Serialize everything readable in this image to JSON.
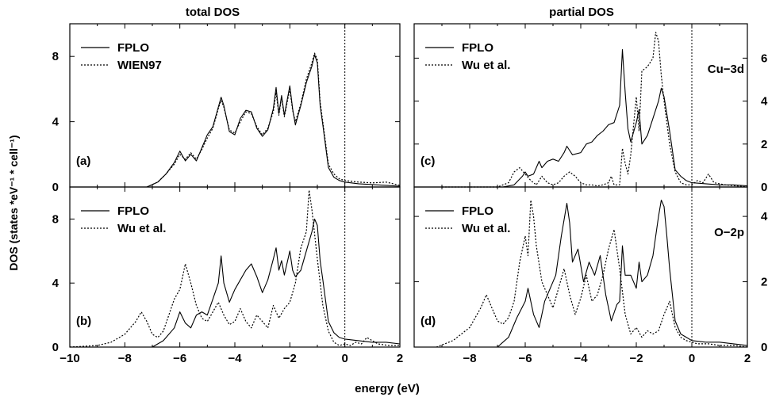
{
  "figure": {
    "column_titles": [
      "total DOS",
      "partial DOS"
    ],
    "xlabel": "energy (eV)",
    "ylabel": "DOS (states *eV⁻¹ * cell⁻¹)"
  },
  "chart_data": [
    {
      "type": "line",
      "panel": "(a)",
      "title": "total DOS",
      "xlim": [
        -10,
        2
      ],
      "ylim": [
        0,
        10
      ],
      "xticks": [],
      "yticks": [
        "0",
        "4",
        "8"
      ],
      "annotation": "",
      "legend": {
        "placement": "top-left",
        "entries": [
          "FPLO",
          "WIEN97"
        ]
      },
      "series": [
        {
          "name": "FPLO",
          "style": "solid",
          "x": [
            -7.2,
            -6.8,
            -6.5,
            -6.2,
            -6.0,
            -5.8,
            -5.6,
            -5.4,
            -5.2,
            -5.0,
            -4.8,
            -4.6,
            -4.5,
            -4.4,
            -4.2,
            -4.0,
            -3.8,
            -3.6,
            -3.4,
            -3.2,
            -3.0,
            -2.8,
            -2.6,
            -2.5,
            -2.4,
            -2.3,
            -2.2,
            -2.0,
            -1.9,
            -1.8,
            -1.6,
            -1.4,
            -1.2,
            -1.1,
            -1.0,
            -0.9,
            -0.8,
            -0.6,
            -0.4,
            -0.2,
            0.0,
            0.5,
            1.0,
            1.5,
            2.0
          ],
          "y": [
            0,
            0.3,
            0.8,
            1.5,
            2.2,
            1.6,
            2.0,
            1.6,
            2.4,
            3.2,
            3.7,
            4.9,
            5.5,
            5.0,
            3.4,
            3.2,
            4.2,
            4.7,
            4.6,
            3.6,
            3.1,
            3.5,
            4.8,
            6.1,
            4.5,
            5.6,
            4.4,
            6.2,
            4.8,
            3.8,
            5.0,
            6.4,
            7.4,
            8.1,
            7.6,
            5.0,
            3.8,
            1.2,
            0.6,
            0.4,
            0.3,
            0.2,
            0.15,
            0.1,
            0.05
          ]
        },
        {
          "name": "WIEN97",
          "style": "dotted",
          "x": [
            -7.2,
            -6.8,
            -6.5,
            -6.2,
            -6.0,
            -5.8,
            -5.6,
            -5.4,
            -5.2,
            -5.0,
            -4.8,
            -4.6,
            -4.5,
            -4.4,
            -4.2,
            -4.0,
            -3.8,
            -3.6,
            -3.4,
            -3.2,
            -3.0,
            -2.8,
            -2.6,
            -2.5,
            -2.4,
            -2.3,
            -2.2,
            -2.0,
            -1.9,
            -1.8,
            -1.6,
            -1.4,
            -1.2,
            -1.1,
            -1.0,
            -0.9,
            -0.8,
            -0.6,
            -0.4,
            -0.2,
            0.0,
            0.5,
            1.0,
            1.5,
            2.0
          ],
          "y": [
            0,
            0.3,
            0.8,
            1.4,
            2.0,
            1.7,
            2.1,
            1.7,
            2.3,
            3.0,
            3.6,
            4.8,
            5.3,
            4.9,
            3.5,
            3.3,
            4.0,
            4.6,
            4.5,
            3.7,
            3.2,
            3.6,
            4.6,
            5.8,
            4.4,
            5.5,
            4.3,
            6.0,
            4.7,
            4.0,
            5.1,
            6.6,
            7.6,
            8.2,
            7.8,
            5.2,
            4.0,
            1.4,
            0.8,
            0.5,
            0.4,
            0.3,
            0.25,
            0.3,
            0.1
          ]
        }
      ]
    },
    {
      "type": "line",
      "panel": "(b)",
      "title": "",
      "xlim": [
        -10,
        2
      ],
      "ylim": [
        0,
        10
      ],
      "xticks": [
        "−10",
        "−8",
        "−6",
        "−4",
        "−2",
        "0",
        "2"
      ],
      "yticks": [
        "0",
        "4",
        "8"
      ],
      "annotation": "",
      "legend": {
        "placement": "top-left",
        "entries": [
          "FPLO",
          "Wu et al."
        ]
      },
      "series": [
        {
          "name": "FPLO",
          "style": "solid",
          "x": [
            -7.0,
            -6.6,
            -6.2,
            -6.0,
            -5.8,
            -5.6,
            -5.4,
            -5.2,
            -5.0,
            -4.8,
            -4.6,
            -4.5,
            -4.4,
            -4.2,
            -4.0,
            -3.8,
            -3.6,
            -3.4,
            -3.2,
            -3.0,
            -2.8,
            -2.6,
            -2.5,
            -2.4,
            -2.3,
            -2.2,
            -2.0,
            -1.9,
            -1.8,
            -1.6,
            -1.4,
            -1.2,
            -1.1,
            -1.0,
            -0.9,
            -0.8,
            -0.6,
            -0.4,
            -0.2,
            0.0,
            0.5,
            1.0,
            1.5,
            2.0
          ],
          "y": [
            0,
            0.4,
            1.2,
            2.2,
            1.5,
            1.2,
            2.0,
            2.2,
            2.0,
            3.0,
            4.0,
            5.7,
            4.0,
            2.8,
            3.6,
            4.2,
            4.8,
            5.2,
            4.4,
            3.4,
            4.2,
            5.5,
            6.2,
            4.8,
            5.4,
            4.5,
            6.0,
            4.8,
            4.4,
            4.8,
            6.0,
            7.2,
            8.0,
            7.6,
            5.4,
            4.2,
            1.6,
            0.9,
            0.6,
            0.5,
            0.4,
            0.3,
            0.3,
            0.2
          ]
        },
        {
          "name": "Wu et al.",
          "style": "dotted",
          "x": [
            -10.0,
            -9.0,
            -8.5,
            -8.0,
            -7.6,
            -7.4,
            -7.2,
            -7.0,
            -6.8,
            -6.6,
            -6.2,
            -6.0,
            -5.8,
            -5.6,
            -5.4,
            -5.2,
            -5.0,
            -4.8,
            -4.6,
            -4.4,
            -4.2,
            -4.0,
            -3.8,
            -3.6,
            -3.4,
            -3.2,
            -3.0,
            -2.8,
            -2.6,
            -2.4,
            -2.2,
            -2.0,
            -1.8,
            -1.6,
            -1.4,
            -1.3,
            -1.2,
            -1.0,
            -0.8,
            -0.6,
            -0.4,
            -0.2,
            0.0,
            0.2,
            0.4,
            0.6,
            0.8,
            1.2,
            1.6,
            2.0
          ],
          "y": [
            0,
            0.1,
            0.3,
            0.8,
            1.6,
            2.2,
            1.6,
            0.8,
            0.6,
            1.0,
            3.0,
            3.6,
            5.2,
            4.0,
            2.6,
            1.8,
            1.6,
            2.2,
            2.8,
            2.0,
            1.4,
            1.6,
            2.4,
            1.6,
            1.2,
            2.0,
            1.6,
            1.2,
            2.6,
            1.8,
            2.4,
            2.8,
            4.0,
            6.2,
            7.2,
            9.8,
            8.6,
            5.5,
            2.6,
            1.0,
            0.3,
            0.1,
            0.2,
            0.1,
            0.3,
            0.2,
            0.6,
            0.2,
            0.1,
            0.1
          ]
        }
      ]
    },
    {
      "type": "line",
      "panel": "(c)",
      "title": "partial DOS",
      "xlim": [
        -10,
        2
      ],
      "ylim": [
        0,
        7.6
      ],
      "xticks": [],
      "yticks": [
        "0",
        "2",
        "4",
        "6"
      ],
      "annotation": "Cu−3d",
      "legend": {
        "placement": "top-left",
        "entries": [
          "FPLO",
          "Wu et al."
        ]
      },
      "series": [
        {
          "name": "FPLO",
          "style": "solid",
          "x": [
            -6.8,
            -6.4,
            -6.1,
            -6.0,
            -5.9,
            -5.7,
            -5.5,
            -5.4,
            -5.2,
            -5.0,
            -4.8,
            -4.6,
            -4.5,
            -4.3,
            -4.0,
            -3.8,
            -3.6,
            -3.4,
            -3.2,
            -3.0,
            -2.8,
            -2.6,
            -2.5,
            -2.4,
            -2.3,
            -2.2,
            -2.0,
            -1.9,
            -1.8,
            -1.6,
            -1.4,
            -1.2,
            -1.1,
            -1.0,
            -0.9,
            -0.8,
            -0.6,
            -0.4,
            -0.2,
            0.0,
            0.5,
            1.0,
            1.5,
            2.0
          ],
          "y": [
            0,
            0.1,
            0.5,
            0.7,
            0.5,
            0.6,
            1.2,
            0.9,
            1.2,
            1.3,
            1.2,
            1.6,
            1.9,
            1.5,
            1.6,
            2.0,
            2.1,
            2.4,
            2.6,
            2.9,
            3.0,
            3.8,
            6.4,
            4.4,
            2.7,
            2.1,
            3.0,
            3.6,
            2.0,
            2.4,
            3.2,
            4.0,
            4.6,
            4.2,
            3.4,
            2.6,
            0.8,
            0.5,
            0.3,
            0.2,
            0.15,
            0.1,
            0.1,
            0.05
          ]
        },
        {
          "name": "Wu et al.",
          "style": "dotted",
          "x": [
            -9.0,
            -7.0,
            -6.6,
            -6.4,
            -6.2,
            -6.0,
            -5.8,
            -5.6,
            -5.4,
            -5.2,
            -5.0,
            -4.8,
            -4.6,
            -4.4,
            -4.2,
            -4.0,
            -3.8,
            -3.6,
            -3.4,
            -3.2,
            -3.0,
            -2.9,
            -2.8,
            -2.6,
            -2.5,
            -2.4,
            -2.3,
            -2.2,
            -2.0,
            -1.9,
            -1.8,
            -1.6,
            -1.4,
            -1.3,
            -1.2,
            -1.1,
            -1.0,
            -0.8,
            -0.6,
            -0.4,
            -0.2,
            0.0,
            0.2,
            0.4,
            0.6,
            0.8,
            1.2,
            1.6,
            2.0
          ],
          "y": [
            0,
            0,
            0.2,
            0.7,
            0.9,
            0.6,
            0.3,
            0.1,
            0.5,
            0.2,
            0.1,
            0.2,
            0.5,
            0.7,
            0.5,
            0.2,
            0.1,
            0.1,
            0.05,
            0.1,
            0.2,
            0.5,
            0.1,
            0.1,
            1.8,
            1.1,
            0.6,
            1.5,
            4.2,
            2.6,
            5.4,
            5.6,
            6.0,
            7.2,
            6.8,
            5.2,
            4.0,
            2.0,
            0.7,
            0.2,
            0.1,
            0.1,
            0.3,
            0.2,
            0.6,
            0.2,
            0.1,
            0.05,
            0
          ]
        }
      ]
    },
    {
      "type": "line",
      "panel": "(d)",
      "title": "",
      "xlim": [
        -10,
        2
      ],
      "ylim": [
        0,
        4.9
      ],
      "xticks": [
        "−8",
        "−6",
        "−4",
        "−2",
        "0",
        "2"
      ],
      "yticks": [
        "0",
        "2",
        "4"
      ],
      "annotation": "O−2p",
      "legend": {
        "placement": "top-left",
        "entries": [
          "FPLO",
          "Wu et al."
        ]
      },
      "series": [
        {
          "name": "FPLO",
          "style": "solid",
          "x": [
            -7.0,
            -6.6,
            -6.3,
            -6.0,
            -5.9,
            -5.7,
            -5.5,
            -5.3,
            -5.1,
            -4.9,
            -4.7,
            -4.5,
            -4.4,
            -4.3,
            -4.1,
            -3.9,
            -3.7,
            -3.5,
            -3.3,
            -3.1,
            -2.9,
            -2.7,
            -2.6,
            -2.5,
            -2.4,
            -2.2,
            -2.0,
            -1.9,
            -1.8,
            -1.6,
            -1.4,
            -1.2,
            -1.1,
            -1.0,
            -0.9,
            -0.8,
            -0.6,
            -0.4,
            -0.2,
            0.0,
            0.5,
            1.0,
            1.5,
            2.0
          ],
          "y": [
            0,
            0.3,
            0.9,
            1.4,
            1.8,
            1.0,
            0.6,
            1.4,
            1.8,
            2.2,
            3.4,
            4.4,
            3.8,
            2.6,
            3.0,
            2.0,
            2.6,
            2.2,
            2.8,
            1.6,
            0.8,
            1.3,
            1.4,
            3.1,
            2.2,
            2.2,
            1.8,
            2.6,
            2.0,
            2.2,
            2.8,
            4.0,
            4.5,
            4.3,
            3.4,
            2.4,
            0.8,
            0.4,
            0.3,
            0.2,
            0.15,
            0.15,
            0.1,
            0.05
          ]
        },
        {
          "name": "Wu et al.",
          "style": "dotted",
          "x": [
            -9.2,
            -8.6,
            -8.0,
            -7.6,
            -7.4,
            -7.2,
            -7.0,
            -6.8,
            -6.6,
            -6.4,
            -6.2,
            -6.0,
            -5.9,
            -5.8,
            -5.7,
            -5.6,
            -5.4,
            -5.2,
            -5.0,
            -4.8,
            -4.6,
            -4.4,
            -4.2,
            -4.0,
            -3.8,
            -3.6,
            -3.4,
            -3.2,
            -3.0,
            -2.8,
            -2.6,
            -2.4,
            -2.2,
            -2.0,
            -1.8,
            -1.6,
            -1.4,
            -1.2,
            -1.0,
            -0.8,
            -0.6,
            -0.4,
            -0.2,
            0.0,
            0.2,
            0.6,
            1.0,
            1.5,
            2.0
          ],
          "y": [
            0,
            0.2,
            0.6,
            1.2,
            1.6,
            1.2,
            0.8,
            0.7,
            0.9,
            1.4,
            2.6,
            3.4,
            2.8,
            4.5,
            4.0,
            3.1,
            2.0,
            1.6,
            1.2,
            1.8,
            2.4,
            1.6,
            1.0,
            1.5,
            2.2,
            1.4,
            1.6,
            2.2,
            3.0,
            3.6,
            2.4,
            1.0,
            0.4,
            0.6,
            0.3,
            0.5,
            0.4,
            0.5,
            1.0,
            1.4,
            0.6,
            0.3,
            0.2,
            0.15,
            0.1,
            0.1,
            0.05,
            0.05,
            0
          ]
        }
      ]
    }
  ]
}
